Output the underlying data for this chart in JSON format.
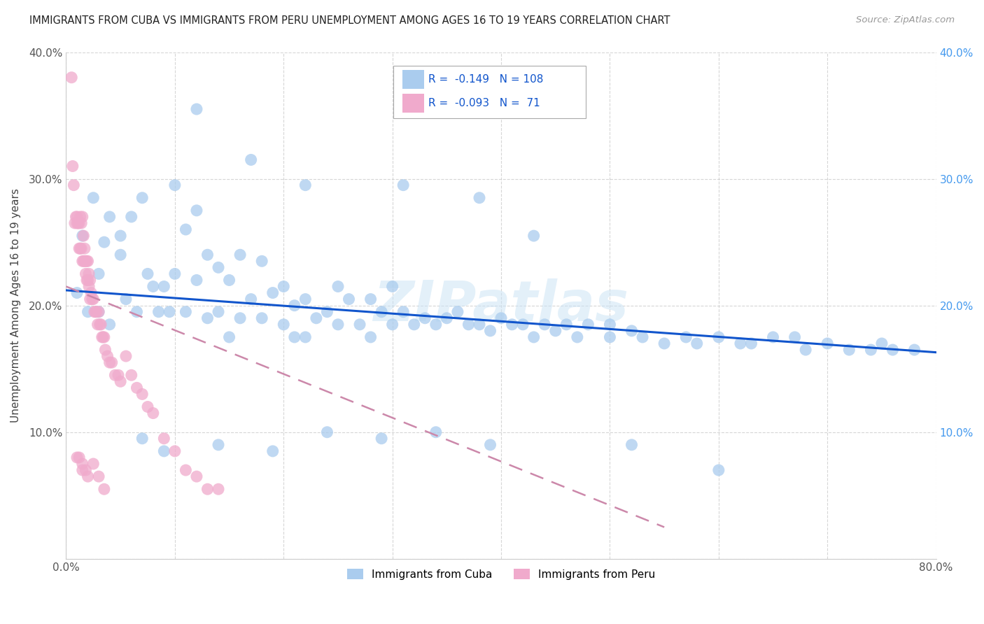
{
  "title": "IMMIGRANTS FROM CUBA VS IMMIGRANTS FROM PERU UNEMPLOYMENT AMONG AGES 16 TO 19 YEARS CORRELATION CHART",
  "source": "Source: ZipAtlas.com",
  "ylabel": "Unemployment Among Ages 16 to 19 years",
  "xlim": [
    0,
    0.8
  ],
  "ylim": [
    0,
    0.4
  ],
  "legend_cuba_r": "-0.149",
  "legend_cuba_n": "108",
  "legend_peru_r": "-0.093",
  "legend_peru_n": "71",
  "cuba_color": "#aaccee",
  "peru_color": "#f0aacc",
  "cuba_line_color": "#1155cc",
  "peru_line_color": "#cc88aa",
  "watermark": "ZIPatlas",
  "background_color": "#ffffff",
  "cuba_scatter_x": [
    0.01,
    0.015,
    0.02,
    0.025,
    0.03,
    0.03,
    0.035,
    0.04,
    0.04,
    0.05,
    0.05,
    0.055,
    0.06,
    0.065,
    0.07,
    0.075,
    0.08,
    0.085,
    0.09,
    0.095,
    0.1,
    0.1,
    0.11,
    0.11,
    0.12,
    0.12,
    0.13,
    0.13,
    0.14,
    0.14,
    0.15,
    0.15,
    0.16,
    0.16,
    0.17,
    0.18,
    0.18,
    0.19,
    0.2,
    0.2,
    0.21,
    0.21,
    0.22,
    0.22,
    0.23,
    0.24,
    0.25,
    0.25,
    0.26,
    0.27,
    0.28,
    0.28,
    0.29,
    0.3,
    0.3,
    0.31,
    0.32,
    0.33,
    0.34,
    0.35,
    0.36,
    0.37,
    0.38,
    0.39,
    0.4,
    0.41,
    0.42,
    0.43,
    0.44,
    0.45,
    0.46,
    0.47,
    0.48,
    0.5,
    0.5,
    0.52,
    0.53,
    0.55,
    0.57,
    0.58,
    0.6,
    0.62,
    0.63,
    0.65,
    0.67,
    0.68,
    0.7,
    0.72,
    0.74,
    0.75,
    0.76,
    0.78,
    0.12,
    0.17,
    0.22,
    0.31,
    0.38,
    0.43,
    0.52,
    0.6,
    0.07,
    0.09,
    0.14,
    0.19,
    0.24,
    0.29,
    0.34,
    0.39
  ],
  "cuba_scatter_y": [
    0.21,
    0.255,
    0.195,
    0.285,
    0.225,
    0.195,
    0.25,
    0.27,
    0.185,
    0.255,
    0.24,
    0.205,
    0.27,
    0.195,
    0.285,
    0.225,
    0.215,
    0.195,
    0.215,
    0.195,
    0.295,
    0.225,
    0.26,
    0.195,
    0.275,
    0.22,
    0.24,
    0.19,
    0.23,
    0.195,
    0.22,
    0.175,
    0.24,
    0.19,
    0.205,
    0.235,
    0.19,
    0.21,
    0.215,
    0.185,
    0.2,
    0.175,
    0.205,
    0.175,
    0.19,
    0.195,
    0.215,
    0.185,
    0.205,
    0.185,
    0.205,
    0.175,
    0.195,
    0.215,
    0.185,
    0.195,
    0.185,
    0.19,
    0.185,
    0.19,
    0.195,
    0.185,
    0.185,
    0.18,
    0.19,
    0.185,
    0.185,
    0.175,
    0.185,
    0.18,
    0.185,
    0.175,
    0.185,
    0.185,
    0.175,
    0.18,
    0.175,
    0.17,
    0.175,
    0.17,
    0.175,
    0.17,
    0.17,
    0.175,
    0.175,
    0.165,
    0.17,
    0.165,
    0.165,
    0.17,
    0.165,
    0.165,
    0.355,
    0.315,
    0.295,
    0.295,
    0.285,
    0.255,
    0.09,
    0.07,
    0.095,
    0.085,
    0.09,
    0.085,
    0.1,
    0.095,
    0.1,
    0.09
  ],
  "peru_scatter_x": [
    0.005,
    0.006,
    0.007,
    0.008,
    0.009,
    0.01,
    0.01,
    0.011,
    0.012,
    0.012,
    0.013,
    0.013,
    0.014,
    0.014,
    0.015,
    0.015,
    0.016,
    0.016,
    0.017,
    0.017,
    0.018,
    0.018,
    0.019,
    0.019,
    0.02,
    0.02,
    0.021,
    0.021,
    0.022,
    0.022,
    0.023,
    0.024,
    0.025,
    0.026,
    0.027,
    0.028,
    0.029,
    0.03,
    0.031,
    0.032,
    0.033,
    0.034,
    0.035,
    0.036,
    0.038,
    0.04,
    0.042,
    0.045,
    0.048,
    0.05,
    0.055,
    0.06,
    0.065,
    0.07,
    0.075,
    0.08,
    0.09,
    0.1,
    0.11,
    0.12,
    0.13,
    0.14,
    0.015,
    0.02,
    0.025,
    0.03,
    0.035,
    0.01,
    0.012,
    0.015,
    0.018
  ],
  "peru_scatter_y": [
    0.38,
    0.31,
    0.295,
    0.265,
    0.27,
    0.265,
    0.27,
    0.265,
    0.245,
    0.265,
    0.245,
    0.27,
    0.245,
    0.265,
    0.235,
    0.27,
    0.235,
    0.255,
    0.235,
    0.245,
    0.235,
    0.225,
    0.22,
    0.235,
    0.22,
    0.235,
    0.215,
    0.225,
    0.205,
    0.22,
    0.21,
    0.205,
    0.205,
    0.195,
    0.195,
    0.195,
    0.185,
    0.195,
    0.185,
    0.185,
    0.175,
    0.175,
    0.175,
    0.165,
    0.16,
    0.155,
    0.155,
    0.145,
    0.145,
    0.14,
    0.16,
    0.145,
    0.135,
    0.13,
    0.12,
    0.115,
    0.095,
    0.085,
    0.07,
    0.065,
    0.055,
    0.055,
    0.075,
    0.065,
    0.075,
    0.065,
    0.055,
    0.08,
    0.08,
    0.07,
    0.07
  ]
}
